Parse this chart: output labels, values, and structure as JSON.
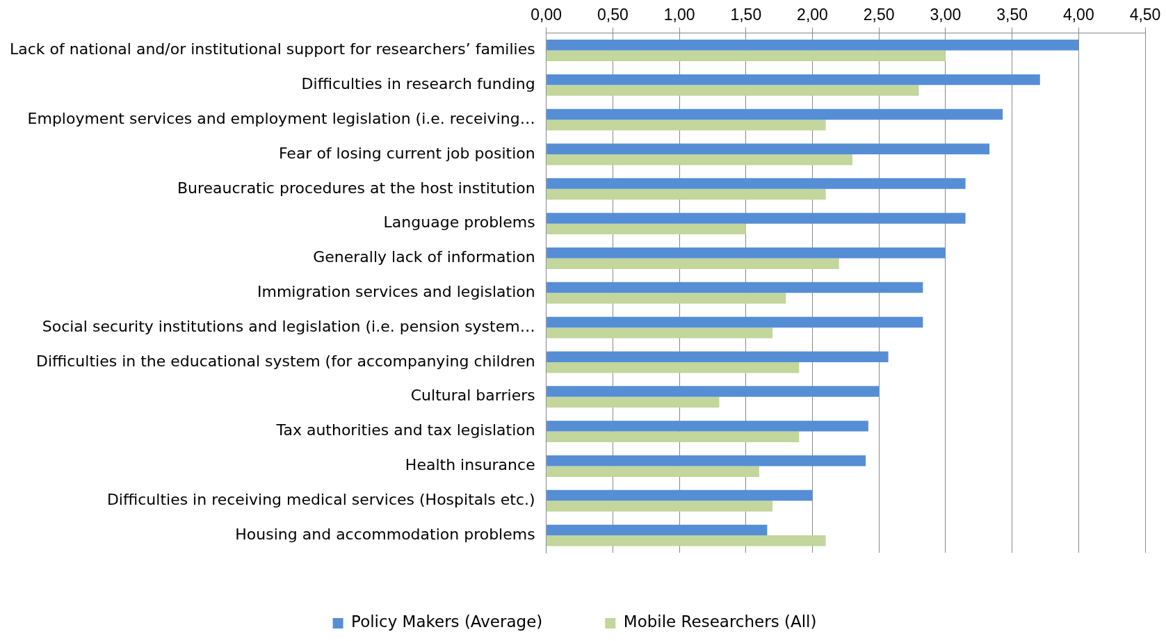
{
  "chart_data": {
    "type": "bar",
    "orientation": "horizontal",
    "categories": [
      "Lack of national and/or institutional support for researchers’ families",
      "Difficulties in research funding",
      "Employment services and employment legislation (i.e. receiving…",
      "Fear of losing current job position",
      "Bureaucratic procedures at the host institution",
      "Language problems",
      "Generally lack of information",
      "Immigration services and legislation",
      "Social security institutions and legislation (i.e. pension system…",
      "Difficulties in the educational system (for accompanying children",
      "Cultural barriers",
      "Tax authorities and tax legislation",
      "Health insurance",
      "Difficulties in receiving medical services (Hospitals etc.)",
      "Housing and accommodation problems"
    ],
    "series": [
      {
        "name": "Policy Makers (Average)",
        "color": "#558ed5",
        "values": [
          4.0,
          3.71,
          3.43,
          3.33,
          3.15,
          3.15,
          3.0,
          2.83,
          2.83,
          2.57,
          2.5,
          2.42,
          2.4,
          2.0,
          1.66
        ]
      },
      {
        "name": "Mobile Researchers (All)",
        "color": "#c3d69b",
        "values": [
          3.0,
          2.8,
          2.1,
          2.3,
          2.1,
          1.5,
          2.2,
          1.8,
          1.7,
          1.9,
          1.3,
          1.9,
          1.6,
          1.7,
          2.1
        ]
      }
    ],
    "xlim": [
      0,
      4.5
    ],
    "xticks": [
      {
        "value": 0,
        "label": "0,00"
      },
      {
        "value": 0.5,
        "label": "0,50"
      },
      {
        "value": 1,
        "label": "1,00"
      },
      {
        "value": 1.5,
        "label": "1,50"
      },
      {
        "value": 2,
        "label": "2,00"
      },
      {
        "value": 2.5,
        "label": "2,50"
      },
      {
        "value": 3,
        "label": "3,00"
      },
      {
        "value": 3.5,
        "label": "3,50"
      },
      {
        "value": 4,
        "label": "4,00"
      },
      {
        "value": 4.5,
        "label": "4,50"
      }
    ],
    "grid": "x",
    "legend": "bottom"
  }
}
